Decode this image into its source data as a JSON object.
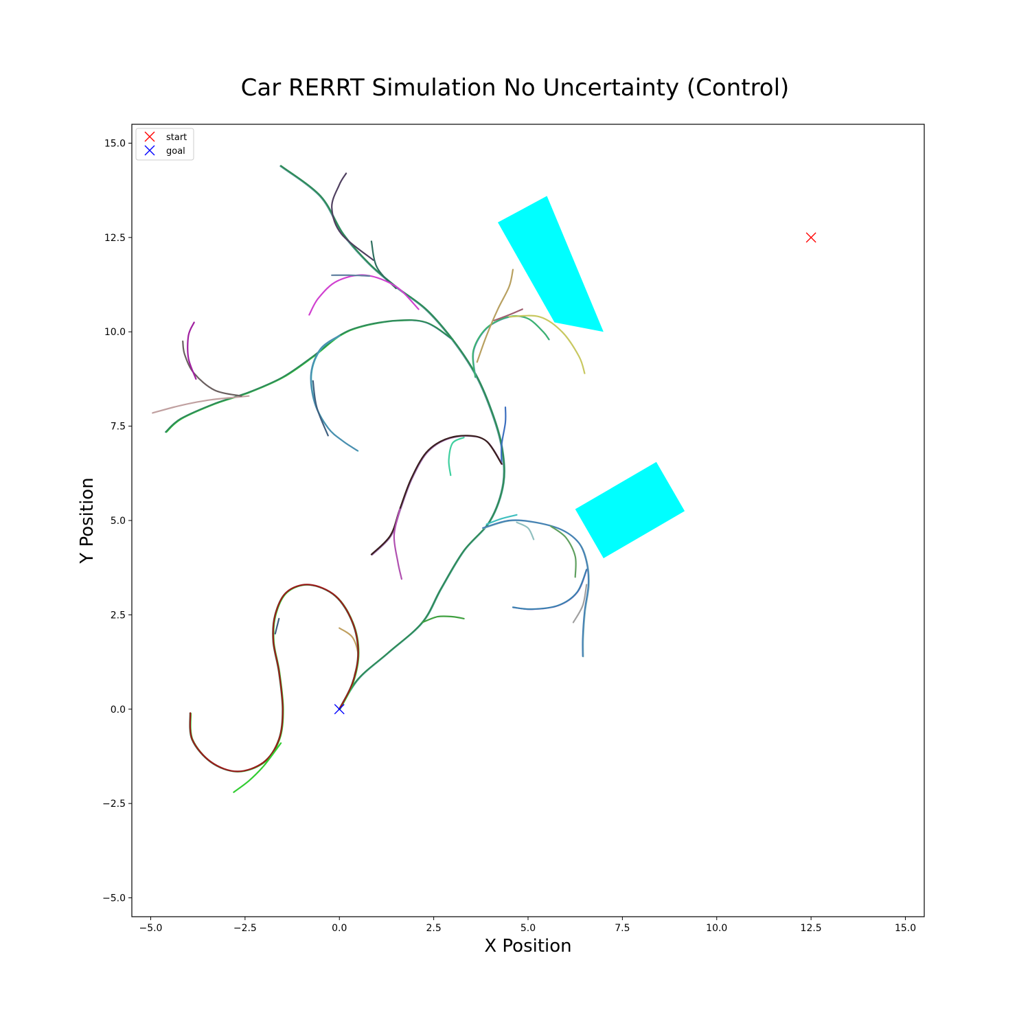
{
  "chart_data": {
    "type": "line",
    "title": "Car RERRT Simulation No Uncertainty (Control)",
    "xlabel": "X Position",
    "ylabel": "Y Position",
    "xlim": [
      -5.5,
      15.5
    ],
    "ylim": [
      -5.5,
      15.5
    ],
    "xticks": [
      -5.0,
      -2.5,
      0.0,
      2.5,
      5.0,
      7.5,
      10.0,
      12.5,
      15.0
    ],
    "xtick_labels": [
      "−5.0",
      "−2.5",
      "0.0",
      "2.5",
      "5.0",
      "7.5",
      "10.0",
      "12.5",
      "15.0"
    ],
    "yticks": [
      -5.0,
      -2.5,
      0.0,
      2.5,
      5.0,
      7.5,
      10.0,
      12.5,
      15.0
    ],
    "ytick_labels": [
      "−5.0",
      "−2.5",
      "0.0",
      "2.5",
      "5.0",
      "7.5",
      "10.0",
      "12.5",
      "15.0"
    ],
    "grid": false,
    "legend": {
      "position": "top-left",
      "entries": [
        {
          "label": "start",
          "marker": "x",
          "color": "#ff0000"
        },
        {
          "label": "goal",
          "marker": "x",
          "color": "#0000ff"
        }
      ]
    },
    "markers": {
      "start": {
        "x": 12.5,
        "y": 12.5,
        "color": "#ff0000"
      },
      "goal": {
        "x": 0.0,
        "y": 0.0,
        "color": "#0000ff"
      }
    },
    "obstacles": [
      {
        "color": "#00ffff",
        "corners": [
          [
            4.2,
            12.9
          ],
          [
            5.5,
            13.6
          ],
          [
            7.0,
            10.0
          ],
          [
            5.7,
            10.25
          ]
        ]
      },
      {
        "color": "#00ffff",
        "corners": [
          [
            6.25,
            5.3
          ],
          [
            8.4,
            6.55
          ],
          [
            9.15,
            5.25
          ],
          [
            7.0,
            4.0
          ]
        ]
      }
    ],
    "paths": [
      {
        "color": "#2e8b57",
        "points": [
          [
            0.0,
            0.0
          ],
          [
            0.5,
            0.8
          ],
          [
            1.3,
            1.5
          ],
          [
            2.2,
            2.3
          ],
          [
            2.7,
            3.2
          ],
          [
            3.3,
            4.2
          ],
          [
            4.0,
            5.0
          ],
          [
            4.35,
            6.0
          ],
          [
            4.3,
            7.0
          ],
          [
            4.0,
            8.0
          ],
          [
            3.6,
            8.9
          ],
          [
            3.0,
            9.8
          ],
          [
            2.3,
            10.6
          ],
          [
            1.5,
            11.2
          ],
          [
            0.8,
            11.8
          ],
          [
            0.1,
            12.6
          ],
          [
            -0.5,
            13.6
          ],
          [
            -1.55,
            14.4
          ]
        ],
        "alt": [
          [
            "#7fbfbf",
            0.6
          ],
          [
            "#5f9ea0",
            0.9
          ]
        ]
      },
      {
        "color": "#4f3f5f",
        "points": [
          [
            0.9,
            11.9
          ],
          [
            0.05,
            12.6
          ],
          [
            -0.2,
            13.3
          ],
          [
            0.0,
            13.9
          ],
          [
            0.18,
            14.2
          ]
        ]
      },
      {
        "color": "#2e6f5f",
        "points": [
          [
            1.5,
            11.15
          ],
          [
            1.0,
            11.7
          ],
          [
            0.85,
            12.4
          ]
        ]
      },
      {
        "color": "#2e8b57",
        "points": [
          [
            3.0,
            9.8
          ],
          [
            2.3,
            10.25
          ],
          [
            1.5,
            10.3
          ],
          [
            0.6,
            10.15
          ],
          [
            0.0,
            9.9
          ],
          [
            -0.7,
            9.35
          ],
          [
            -1.5,
            8.8
          ],
          [
            -2.4,
            8.4
          ],
          [
            -3.3,
            8.1
          ],
          [
            -4.2,
            7.7
          ],
          [
            -4.6,
            7.35
          ]
        ],
        "alt": [
          [
            "#32cd32",
            0.8
          ],
          [
            "#6a8dcd",
            0.5
          ]
        ]
      },
      {
        "color": "#c0a0a0",
        "points": [
          [
            -2.4,
            8.3
          ],
          [
            -3.4,
            8.2
          ],
          [
            -4.2,
            8.05
          ],
          [
            -4.95,
            7.85
          ]
        ]
      },
      {
        "color": "#6a5f5f",
        "points": [
          [
            -2.6,
            8.3
          ],
          [
            -3.3,
            8.45
          ],
          [
            -3.85,
            8.9
          ],
          [
            -4.1,
            9.4
          ],
          [
            -4.15,
            9.75
          ]
        ]
      },
      {
        "color": "#a020a0",
        "points": [
          [
            -3.8,
            8.75
          ],
          [
            -4.0,
            9.3
          ],
          [
            -4.0,
            9.9
          ],
          [
            -3.85,
            10.25
          ]
        ]
      },
      {
        "color": "#4a8fb0",
        "points": [
          [
            0.0,
            9.9
          ],
          [
            -0.5,
            9.55
          ],
          [
            -0.75,
            8.9
          ],
          [
            -0.65,
            8.1
          ],
          [
            -0.3,
            7.45
          ],
          [
            0.1,
            7.1
          ],
          [
            0.48,
            6.85
          ]
        ],
        "alt": [
          [
            "#3fb8b8",
            0.7
          ]
        ]
      },
      {
        "color": "#3f5f7f",
        "points": [
          [
            -0.7,
            8.7
          ],
          [
            -0.6,
            8.0
          ],
          [
            -0.3,
            7.25
          ]
        ]
      },
      {
        "color": "#d040d0",
        "points": [
          [
            2.1,
            10.6
          ],
          [
            1.5,
            11.2
          ],
          [
            0.7,
            11.5
          ],
          [
            -0.05,
            11.35
          ],
          [
            -0.55,
            10.9
          ],
          [
            -0.8,
            10.45
          ]
        ]
      },
      {
        "color": "#5f7f9f",
        "points": [
          [
            0.8,
            11.48
          ],
          [
            0.3,
            11.5
          ],
          [
            -0.2,
            11.5
          ]
        ]
      },
      {
        "color": "#3cb371",
        "points": [
          [
            3.6,
            8.8
          ],
          [
            3.55,
            9.5
          ],
          [
            3.9,
            10.1
          ],
          [
            4.5,
            10.4
          ],
          [
            5.0,
            10.35
          ],
          [
            5.4,
            10.0
          ],
          [
            5.55,
            9.8
          ]
        ],
        "alt": [
          [
            "#6a8dcd",
            0.6
          ]
        ]
      },
      {
        "color": "#c8c860",
        "points": [
          [
            4.5,
            10.4
          ],
          [
            5.3,
            10.4
          ],
          [
            5.9,
            10.0
          ],
          [
            6.35,
            9.35
          ],
          [
            6.5,
            8.9
          ]
        ]
      },
      {
        "color": "#b8a060",
        "points": [
          [
            3.65,
            9.2
          ],
          [
            3.9,
            9.9
          ],
          [
            4.2,
            10.6
          ],
          [
            4.5,
            11.2
          ],
          [
            4.6,
            11.65
          ]
        ]
      },
      {
        "color": "#9f5f6f",
        "points": [
          [
            4.1,
            10.3
          ],
          [
            4.5,
            10.45
          ],
          [
            4.85,
            10.6
          ]
        ]
      },
      {
        "color": "#3c6fbf",
        "points": [
          [
            4.3,
            6.5
          ],
          [
            4.3,
            7.0
          ],
          [
            4.4,
            7.6
          ],
          [
            4.4,
            8.0
          ]
        ]
      },
      {
        "color": "#3a1f1f",
        "points": [
          [
            4.3,
            6.5
          ],
          [
            3.9,
            7.1
          ],
          [
            3.4,
            7.25
          ],
          [
            2.8,
            7.15
          ],
          [
            2.3,
            6.8
          ],
          [
            1.9,
            6.1
          ],
          [
            1.6,
            5.3
          ],
          [
            1.35,
            4.6
          ],
          [
            0.85,
            4.1
          ]
        ],
        "alt": [
          [
            "#9f70b0",
            1.0
          ]
        ]
      },
      {
        "color": "#b050b0",
        "points": [
          [
            1.6,
            5.3
          ],
          [
            1.45,
            4.6
          ],
          [
            1.55,
            3.9
          ],
          [
            1.65,
            3.45
          ]
        ]
      },
      {
        "color": "#3fcf9f",
        "points": [
          [
            3.3,
            7.2
          ],
          [
            3.0,
            7.05
          ],
          [
            2.9,
            6.6
          ],
          [
            2.95,
            6.2
          ]
        ]
      },
      {
        "color": "#4682b4",
        "points": [
          [
            3.8,
            4.8
          ],
          [
            4.5,
            5.0
          ],
          [
            5.2,
            4.95
          ],
          [
            5.9,
            4.75
          ],
          [
            6.35,
            4.4
          ],
          [
            6.55,
            3.9
          ],
          [
            6.6,
            3.3
          ],
          [
            6.5,
            2.6
          ],
          [
            6.45,
            1.9
          ],
          [
            6.45,
            1.4
          ]
        ],
        "alt": [
          [
            "#8fbfbf",
            0.8
          ]
        ]
      },
      {
        "color": "#3a7fb0",
        "points": [
          [
            6.55,
            3.7
          ],
          [
            6.3,
            3.1
          ],
          [
            5.8,
            2.75
          ],
          [
            5.1,
            2.65
          ],
          [
            4.6,
            2.7
          ]
        ],
        "alt": [
          [
            "#9f5fbf",
            0.4
          ]
        ]
      },
      {
        "color": "#5fa05f",
        "points": [
          [
            5.6,
            4.85
          ],
          [
            6.0,
            4.55
          ],
          [
            6.25,
            4.05
          ],
          [
            6.25,
            3.5
          ]
        ]
      },
      {
        "color": "#8fbfbf",
        "points": [
          [
            4.7,
            4.95
          ],
          [
            5.0,
            4.8
          ],
          [
            5.15,
            4.5
          ]
        ]
      },
      {
        "color": "#3fbfbf",
        "points": [
          [
            3.9,
            4.9
          ],
          [
            4.3,
            5.05
          ],
          [
            4.7,
            5.15
          ]
        ]
      },
      {
        "color": "#a0a0a0",
        "points": [
          [
            6.55,
            3.3
          ],
          [
            6.45,
            2.75
          ],
          [
            6.2,
            2.3
          ]
        ]
      },
      {
        "color": "#3fa03f",
        "points": [
          [
            2.2,
            2.3
          ],
          [
            2.6,
            2.45
          ],
          [
            3.0,
            2.45
          ],
          [
            3.3,
            2.4
          ]
        ]
      },
      {
        "color": "#c0a060",
        "points": [
          [
            0.0,
            2.15
          ],
          [
            0.35,
            1.9
          ],
          [
            0.5,
            1.4
          ],
          [
            0.4,
            0.9
          ]
        ]
      },
      {
        "color": "#9b1b1b",
        "points": [
          [
            0.0,
            0.0
          ],
          [
            0.35,
            0.7
          ],
          [
            0.5,
            1.5
          ],
          [
            0.35,
            2.3
          ],
          [
            -0.1,
            3.0
          ],
          [
            -0.8,
            3.3
          ],
          [
            -1.4,
            3.1
          ],
          [
            -1.7,
            2.5
          ],
          [
            -1.75,
            1.8
          ],
          [
            -1.6,
            1.0
          ],
          [
            -1.5,
            0.0
          ],
          [
            -1.6,
            -0.8
          ],
          [
            -2.0,
            -1.4
          ],
          [
            -2.7,
            -1.65
          ],
          [
            -3.4,
            -1.4
          ],
          [
            -3.9,
            -0.8
          ],
          [
            -3.95,
            -0.1
          ]
        ],
        "alt": [
          [
            "#32cd32",
            0.8
          ],
          [
            "#2e8b57",
            0.5
          ]
        ]
      },
      {
        "color": "#32cd32",
        "points": [
          [
            -1.55,
            -0.9
          ],
          [
            -2.0,
            -1.5
          ],
          [
            -2.4,
            -1.9
          ],
          [
            -2.8,
            -2.2
          ]
        ]
      },
      {
        "color": "#3f5f7f",
        "points": [
          [
            -1.6,
            2.4
          ],
          [
            -1.7,
            2.0
          ]
        ]
      }
    ]
  }
}
